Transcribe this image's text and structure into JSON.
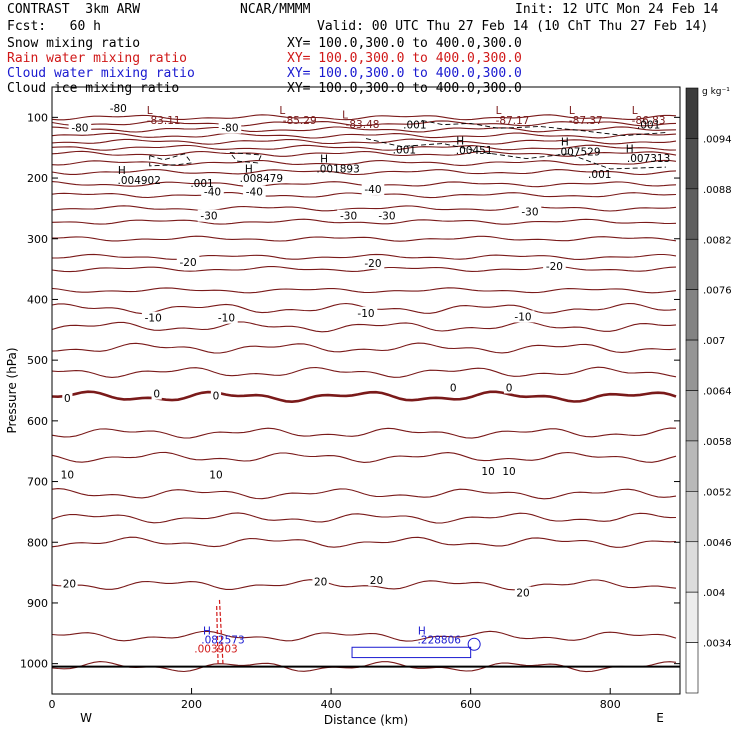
{
  "header": {
    "model": "CONTRAST  3km ARW",
    "org": "NCAR/MMMM",
    "init": "Init: 12 UTC Mon 24 Feb 14",
    "fcst": "Fcst:   60 h",
    "valid": "Valid: 00 UTC Thu 27 Feb 14 (10 ChT Thu 27 Feb 14)",
    "fields": [
      {
        "name": "Snow mixing ratio",
        "xy": "XY= 100.0,300.0 to 400.0,300.0",
        "color": "#000000"
      },
      {
        "name": "Rain water mixing ratio",
        "xy": "XY= 100.0,300.0 to 400.0,300.0",
        "color": "#d01818"
      },
      {
        "name": "Cloud water mixing ratio",
        "xy": "XY= 100.0,300.0 to 400.0,300.0",
        "color": "#1a1ad0"
      },
      {
        "name": "Cloud ice mixing ratio",
        "xy": "XY= 100.0,300.0 to 400.0,300.0",
        "color": "#000000"
      }
    ]
  },
  "chart_data": {
    "type": "contour_cross_section",
    "xlabel": "Distance (km)",
    "ylabel": "Pressure (hPa)",
    "xlim": [
      0,
      900
    ],
    "ylim": [
      1050,
      50
    ],
    "x_ticks": [
      0,
      200,
      400,
      600,
      800
    ],
    "y_ticks": [
      100,
      200,
      300,
      400,
      500,
      600,
      700,
      800,
      900,
      1000
    ],
    "x_end_labels": {
      "left": "W",
      "right": "E"
    },
    "colorbar": {
      "units": "g kg⁻¹",
      "labels": [
        ".0094",
        ".0088",
        ".0082",
        ".0076",
        ".007",
        ".0064",
        ".0058",
        ".0052",
        ".0046",
        ".004",
        ".0034"
      ]
    },
    "temperature_contours": {
      "color": "#7a1a1a",
      "levels_hpa": [
        1005,
        955,
        870,
        800,
        760,
        720,
        660,
        620,
        560,
        520,
        480,
        445,
        415,
        385,
        350,
        330,
        300,
        272,
        250,
        228,
        210,
        190,
        175,
        160,
        150,
        140,
        130,
        120,
        110,
        100
      ],
      "zero_level_hpa": 560,
      "labels": [
        {
          "t": "-80",
          "x": 95,
          "p": 85
        },
        {
          "t": "-80",
          "x": 40,
          "p": 117
        },
        {
          "t": "-80",
          "x": 255,
          "p": 117
        },
        {
          "t": "-40",
          "x": 230,
          "p": 222
        },
        {
          "t": "-40",
          "x": 290,
          "p": 222
        },
        {
          "t": "-40",
          "x": 460,
          "p": 218
        },
        {
          "t": "-30",
          "x": 225,
          "p": 262
        },
        {
          "t": "-30",
          "x": 425,
          "p": 262
        },
        {
          "t": "-30",
          "x": 480,
          "p": 262
        },
        {
          "t": "-30",
          "x": 685,
          "p": 255
        },
        {
          "t": "-20",
          "x": 195,
          "p": 338
        },
        {
          "t": "-20",
          "x": 460,
          "p": 340
        },
        {
          "t": "-20",
          "x": 720,
          "p": 345
        },
        {
          "t": "-10",
          "x": 145,
          "p": 430
        },
        {
          "t": "-10",
          "x": 250,
          "p": 430
        },
        {
          "t": "-10",
          "x": 450,
          "p": 422
        },
        {
          "t": "-10",
          "x": 675,
          "p": 428
        },
        {
          "t": "0",
          "x": 22,
          "p": 562
        },
        {
          "t": "0",
          "x": 150,
          "p": 555
        },
        {
          "t": "0",
          "x": 235,
          "p": 558
        },
        {
          "t": "0",
          "x": 575,
          "p": 545
        },
        {
          "t": "0",
          "x": 655,
          "p": 545
        },
        {
          "t": "10",
          "x": 22,
          "p": 688
        },
        {
          "t": "10",
          "x": 235,
          "p": 688
        },
        {
          "t": "10",
          "x": 625,
          "p": 683
        },
        {
          "t": "10",
          "x": 655,
          "p": 683
        },
        {
          "t": "20",
          "x": 25,
          "p": 868
        },
        {
          "t": "20",
          "x": 385,
          "p": 865
        },
        {
          "t": "20",
          "x": 465,
          "p": 862
        },
        {
          "t": "20",
          "x": 675,
          "p": 883
        }
      ]
    },
    "extrema": [
      {
        "t": "L",
        "x": 140,
        "p": 88,
        "color": "#7a1a1a"
      },
      {
        "t": "-83.11",
        "x": 160,
        "p": 104,
        "color": "#7a1a1a"
      },
      {
        "t": "L",
        "x": 330,
        "p": 88,
        "color": "#7a1a1a"
      },
      {
        "t": "-85.29",
        "x": 355,
        "p": 104,
        "color": "#7a1a1a"
      },
      {
        "t": "L",
        "x": 420,
        "p": 95,
        "color": "#7a1a1a"
      },
      {
        "t": "-83.48",
        "x": 445,
        "p": 111,
        "color": "#7a1a1a"
      },
      {
        "t": "L",
        "x": 640,
        "p": 88,
        "color": "#7a1a1a"
      },
      {
        "t": "-87.17",
        "x": 660,
        "p": 104,
        "color": "#7a1a1a"
      },
      {
        "t": "L",
        "x": 745,
        "p": 88,
        "color": "#7a1a1a"
      },
      {
        "t": "-87.37",
        "x": 765,
        "p": 104,
        "color": "#7a1a1a"
      },
      {
        "t": "L",
        "x": 835,
        "p": 88,
        "color": "#7a1a1a"
      },
      {
        "t": "-86.83",
        "x": 855,
        "p": 104,
        "color": "#7a1a1a"
      },
      {
        "t": "H",
        "x": 100,
        "p": 187,
        "color": "#000000"
      },
      {
        "t": ".004902",
        "x": 125,
        "p": 203,
        "color": "#000000"
      },
      {
        "t": "H",
        "x": 282,
        "p": 184,
        "color": "#000000"
      },
      {
        "t": ".008479",
        "x": 300,
        "p": 200,
        "color": "#000000"
      },
      {
        "t": "H",
        "x": 390,
        "p": 168,
        "color": "#000000"
      },
      {
        "t": ".001893",
        "x": 410,
        "p": 184,
        "color": "#000000"
      },
      {
        "t": "H",
        "x": 585,
        "p": 138,
        "color": "#000000"
      },
      {
        "t": ".00451",
        "x": 605,
        "p": 154,
        "color": "#000000"
      },
      {
        "t": "H",
        "x": 735,
        "p": 140,
        "color": "#000000"
      },
      {
        "t": ".007529",
        "x": 755,
        "p": 156,
        "color": "#000000"
      },
      {
        "t": "H",
        "x": 828,
        "p": 151,
        "color": "#000000"
      },
      {
        "t": ".007313",
        "x": 855,
        "p": 167,
        "color": "#000000"
      },
      {
        "t": ".001",
        "x": 520,
        "p": 112,
        "color": "#000000"
      },
      {
        "t": ".001",
        "x": 855,
        "p": 112,
        "color": "#000000"
      },
      {
        "t": ".001",
        "x": 505,
        "p": 153,
        "color": "#000000"
      },
      {
        "t": ".001",
        "x": 215,
        "p": 208,
        "color": "#000000"
      },
      {
        "t": ".001",
        "x": 785,
        "p": 193,
        "color": "#000000"
      },
      {
        "t": "H",
        "x": 222,
        "p": 945,
        "color": "#1a1ad0"
      },
      {
        "t": ".082573",
        "x": 245,
        "p": 960,
        "color": "#1a1ad0"
      },
      {
        "t": ".003903",
        "x": 235,
        "p": 975,
        "color": "#d01818"
      },
      {
        "t": "H",
        "x": 530,
        "p": 945,
        "color": "#1a1ad0"
      },
      {
        "t": ".228806",
        "x": 555,
        "p": 960,
        "color": "#1a1ad0"
      }
    ]
  }
}
